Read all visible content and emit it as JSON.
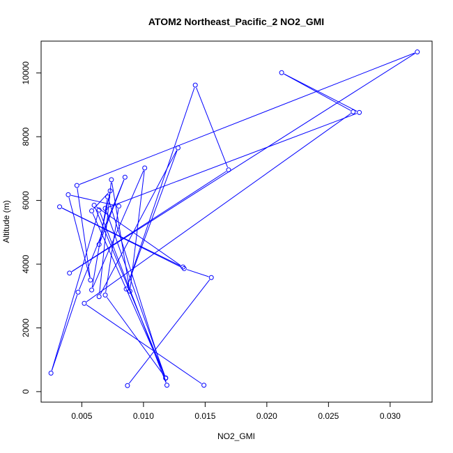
{
  "chart_data": {
    "type": "line",
    "title": "ATOM2 Northeast_Pacific_2 NO2_GMI",
    "xlabel": "NO2_GMI",
    "ylabel": "Altitude (m)",
    "xlim": [
      0.0017,
      0.0334
    ],
    "ylim": [
      -330,
      11000
    ],
    "xticks": [
      0.005,
      0.01,
      0.015,
      0.02,
      0.025,
      0.03
    ],
    "xtick_labels": [
      "0.005",
      "0.010",
      "0.015",
      "0.020",
      "0.025",
      "0.030"
    ],
    "yticks": [
      0,
      2000,
      4000,
      6000,
      8000,
      10000
    ],
    "ytick_labels": [
      "0",
      "2000",
      "4000",
      "6000",
      "8000",
      "10000"
    ],
    "grid": false,
    "series": [
      {
        "color": "#0000ff",
        "marker": "open-circle",
        "points": [
          {
            "x": 0.0087,
            "y": 190
          },
          {
            "x": 0.0155,
            "y": 3580
          },
          {
            "x": 0.0133,
            "y": 3860
          },
          {
            "x": 0.0032,
            "y": 5800
          },
          {
            "x": 0.0132,
            "y": 3910
          },
          {
            "x": 0.006,
            "y": 5850
          },
          {
            "x": 0.0118,
            "y": 430
          },
          {
            "x": 0.0069,
            "y": 3030
          },
          {
            "x": 0.008,
            "y": 5820
          },
          {
            "x": 0.0039,
            "y": 6180
          },
          {
            "x": 0.0057,
            "y": 3500
          },
          {
            "x": 0.0046,
            "y": 6470
          },
          {
            "x": 0.0322,
            "y": 10660
          },
          {
            "x": 0.004,
            "y": 3720
          },
          {
            "x": 0.0169,
            "y": 6960
          },
          {
            "x": 0.0142,
            "y": 9620
          },
          {
            "x": 0.0086,
            "y": 3220
          },
          {
            "x": 0.0128,
            "y": 7650
          },
          {
            "x": 0.0064,
            "y": 2980
          },
          {
            "x": 0.0074,
            "y": 6650
          },
          {
            "x": 0.0089,
            "y": 3150
          },
          {
            "x": 0.0101,
            "y": 7020
          },
          {
            "x": 0.0058,
            "y": 3190
          },
          {
            "x": 0.0071,
            "y": 6110
          },
          {
            "x": 0.0119,
            "y": 200
          },
          {
            "x": 0.0064,
            "y": 5700
          },
          {
            "x": 0.0025,
            "y": 580
          },
          {
            "x": 0.0047,
            "y": 3120
          },
          {
            "x": 0.0085,
            "y": 6730
          },
          {
            "x": 0.0064,
            "y": 4620
          },
          {
            "x": 0.0073,
            "y": 6300
          },
          {
            "x": 0.0058,
            "y": 5670
          },
          {
            "x": 0.0118,
            "y": 420
          },
          {
            "x": 0.0069,
            "y": 5750
          },
          {
            "x": 0.0275,
            "y": 8760
          },
          {
            "x": 0.0212,
            "y": 10010
          },
          {
            "x": 0.027,
            "y": 8780
          },
          {
            "x": 0.0052,
            "y": 2770
          },
          {
            "x": 0.0149,
            "y": 200
          }
        ]
      }
    ]
  }
}
